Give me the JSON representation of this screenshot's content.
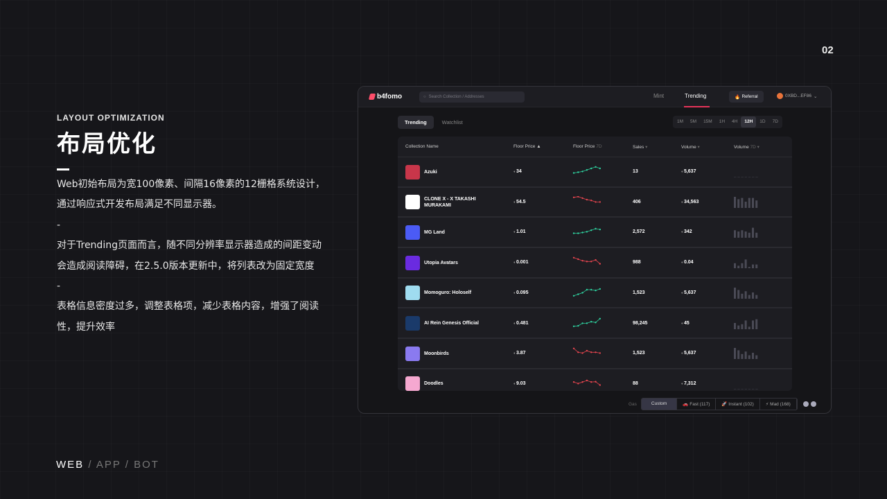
{
  "slide": {
    "page_number": "02",
    "subtitle": "LAYOUT OPTIMIZATION",
    "title": "布局优化",
    "paragraphs": [
      "Web初始布局为宽100像素、间隔16像素的12栅格系统设计，通过响应式开发布局满足不同显示器。",
      "-",
      "对于Trending页面而言，随不同分辨率显示器造成的间距变动会造成阅读障碍，在2.5.0版本更新中，将列表改为固定宽度",
      "-",
      "表格信息密度过多，调整表格项，减少表格内容，增强了阅读性，提升效率"
    ],
    "footer": {
      "web": "WEB",
      "sep": "/",
      "app": "APP",
      "bot": "BOT"
    }
  },
  "app": {
    "logo": "b4fomo",
    "search_placeholder": "Search Collection / Addresses",
    "nav": {
      "mint": "Mint",
      "trending": "Trending"
    },
    "referral": "Referral",
    "address": "0XBD...EF86",
    "tabs": [
      "Trending",
      "Watchlist"
    ],
    "ranges": [
      "1M",
      "5M",
      "15M",
      "1H",
      "4H",
      "12H",
      "1D",
      "7D"
    ],
    "active_range": "12H",
    "columns": {
      "name": "Collection Name",
      "floor": "Floor Price",
      "floor7": "Floor Price",
      "floor7_suffix": "7D",
      "sales": "Sales",
      "volume": "Volume",
      "volume7": "Volume",
      "volume7_suffix": "7D"
    },
    "colors": {
      "up": "#2ed3a0",
      "down": "#e8454f",
      "accent": "#e8345a"
    },
    "rows": [
      {
        "name": "Azuki",
        "floor": "34",
        "sales": "13",
        "volume": "5,637",
        "avatar": "#c8364a",
        "trend": [
          2,
          2.5,
          3,
          4,
          5,
          6,
          5
        ],
        "vol7": [
          0,
          0,
          0,
          0,
          0,
          0,
          0
        ]
      },
      {
        "name": "CLONE X - X TAKASHI MURAKAMI",
        "floor": "54.5",
        "sales": "406",
        "volume": "34,563",
        "avatar": "#ffffff",
        "trend": [
          6,
          6.5,
          5.5,
          4.5,
          4,
          3,
          3
        ],
        "vol7": [
          9,
          7,
          8,
          5,
          8,
          8,
          6
        ]
      },
      {
        "name": "MG Land",
        "floor": "1.01",
        "sales": "2,572",
        "volume": "342",
        "avatar": "#4b5bf5",
        "trend": [
          2,
          2,
          2.5,
          3,
          4,
          5,
          4.5
        ],
        "vol7": [
          6,
          5,
          6,
          5,
          4,
          8,
          4
        ]
      },
      {
        "name": "Utopia Avatars",
        "floor": "0.001",
        "sales": "988",
        "volume": "0.04",
        "avatar": "#6a2be0",
        "trend": [
          6,
          5,
          4,
          3.5,
          3.5,
          4.5,
          2
        ],
        "vol7": [
          4,
          2,
          4,
          7,
          1,
          3,
          3
        ]
      },
      {
        "name": "Momoguro: Holoself",
        "floor": "0.095",
        "sales": "1,523",
        "volume": "5,637",
        "avatar": "#9fdcf0",
        "trend": [
          1,
          2,
          3,
          5,
          5,
          4.5,
          5.5
        ],
        "vol7": [
          9,
          7,
          4,
          6,
          3,
          5,
          3
        ]
      },
      {
        "name": "AI Rein Genesis Official",
        "floor": "0.481",
        "sales": "98,245",
        "volume": "45",
        "avatar": "#1a3a6a",
        "trend": [
          1,
          1.3,
          3,
          3,
          4,
          3.5,
          6
        ],
        "vol7": [
          5,
          3,
          4,
          7,
          2,
          7,
          8
        ]
      },
      {
        "name": "Moonbirds",
        "floor": "3.87",
        "sales": "1,523",
        "volume": "5,637",
        "avatar": "#8a7af0",
        "trend": [
          6,
          3.5,
          3,
          4.5,
          3.5,
          3.5,
          3
        ],
        "vol7": [
          9,
          7,
          4,
          6,
          3,
          5,
          3
        ]
      },
      {
        "name": "Doodles",
        "floor": "9.03",
        "sales": "88",
        "volume": "7,312",
        "avatar": "#f5a8d0",
        "trend": [
          4,
          3,
          4,
          5,
          4,
          4.2,
          2
        ],
        "vol7": [
          0,
          0,
          0,
          0,
          0,
          0,
          0
        ]
      }
    ],
    "gas": {
      "label": "Gas",
      "options": [
        "Custom",
        "Fast (117)",
        "Instant (102)",
        "Mad (168)"
      ],
      "active": "Custom"
    }
  }
}
